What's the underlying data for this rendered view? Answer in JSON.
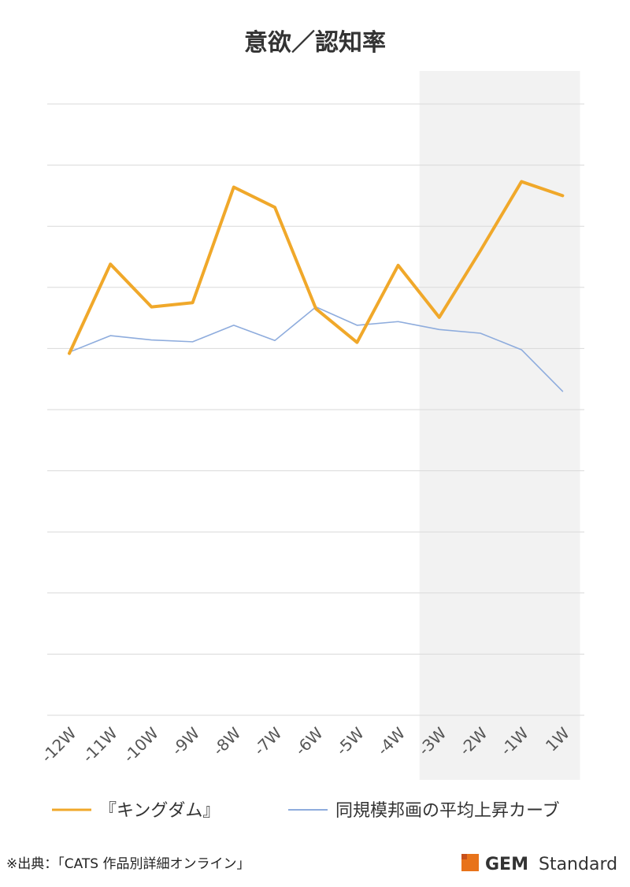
{
  "chart_data": {
    "type": "line",
    "title": "意欲／認知率",
    "categories": [
      "-12W",
      "-11W",
      "-10W",
      "-9W",
      "-8W",
      "-7W",
      "-6W",
      "-5W",
      "-4W",
      "-3W",
      "-2W",
      "-1W",
      "1W"
    ],
    "series": [
      {
        "name": "『キングダム』",
        "color": "#F0A82A",
        "values": [
          59.2,
          73.8,
          66.8,
          67.5,
          86.4,
          83.1,
          66.5,
          61.0,
          73.6,
          65.1,
          76.0,
          87.3,
          85.0
        ]
      },
      {
        "name": "同規模邦画の平均上昇カーブ",
        "color": "#8EACDD",
        "values": [
          59.4,
          62.1,
          61.4,
          61.1,
          63.8,
          61.3,
          66.8,
          63.8,
          64.4,
          63.1,
          62.5,
          59.8,
          53.0
        ]
      }
    ],
    "ylim": [
      0,
      100
    ],
    "grid": true,
    "shaded_range": [
      "-3W",
      "1W"
    ],
    "legend_position": "bottom"
  },
  "footer": {
    "source": "※出典：「CATS 作品別詳細オンライン」",
    "brand_bold": "GEM",
    "brand_rest": "Standard",
    "brand_colors": [
      "#E8731A",
      "#C8501A",
      "#F2A03A"
    ]
  }
}
